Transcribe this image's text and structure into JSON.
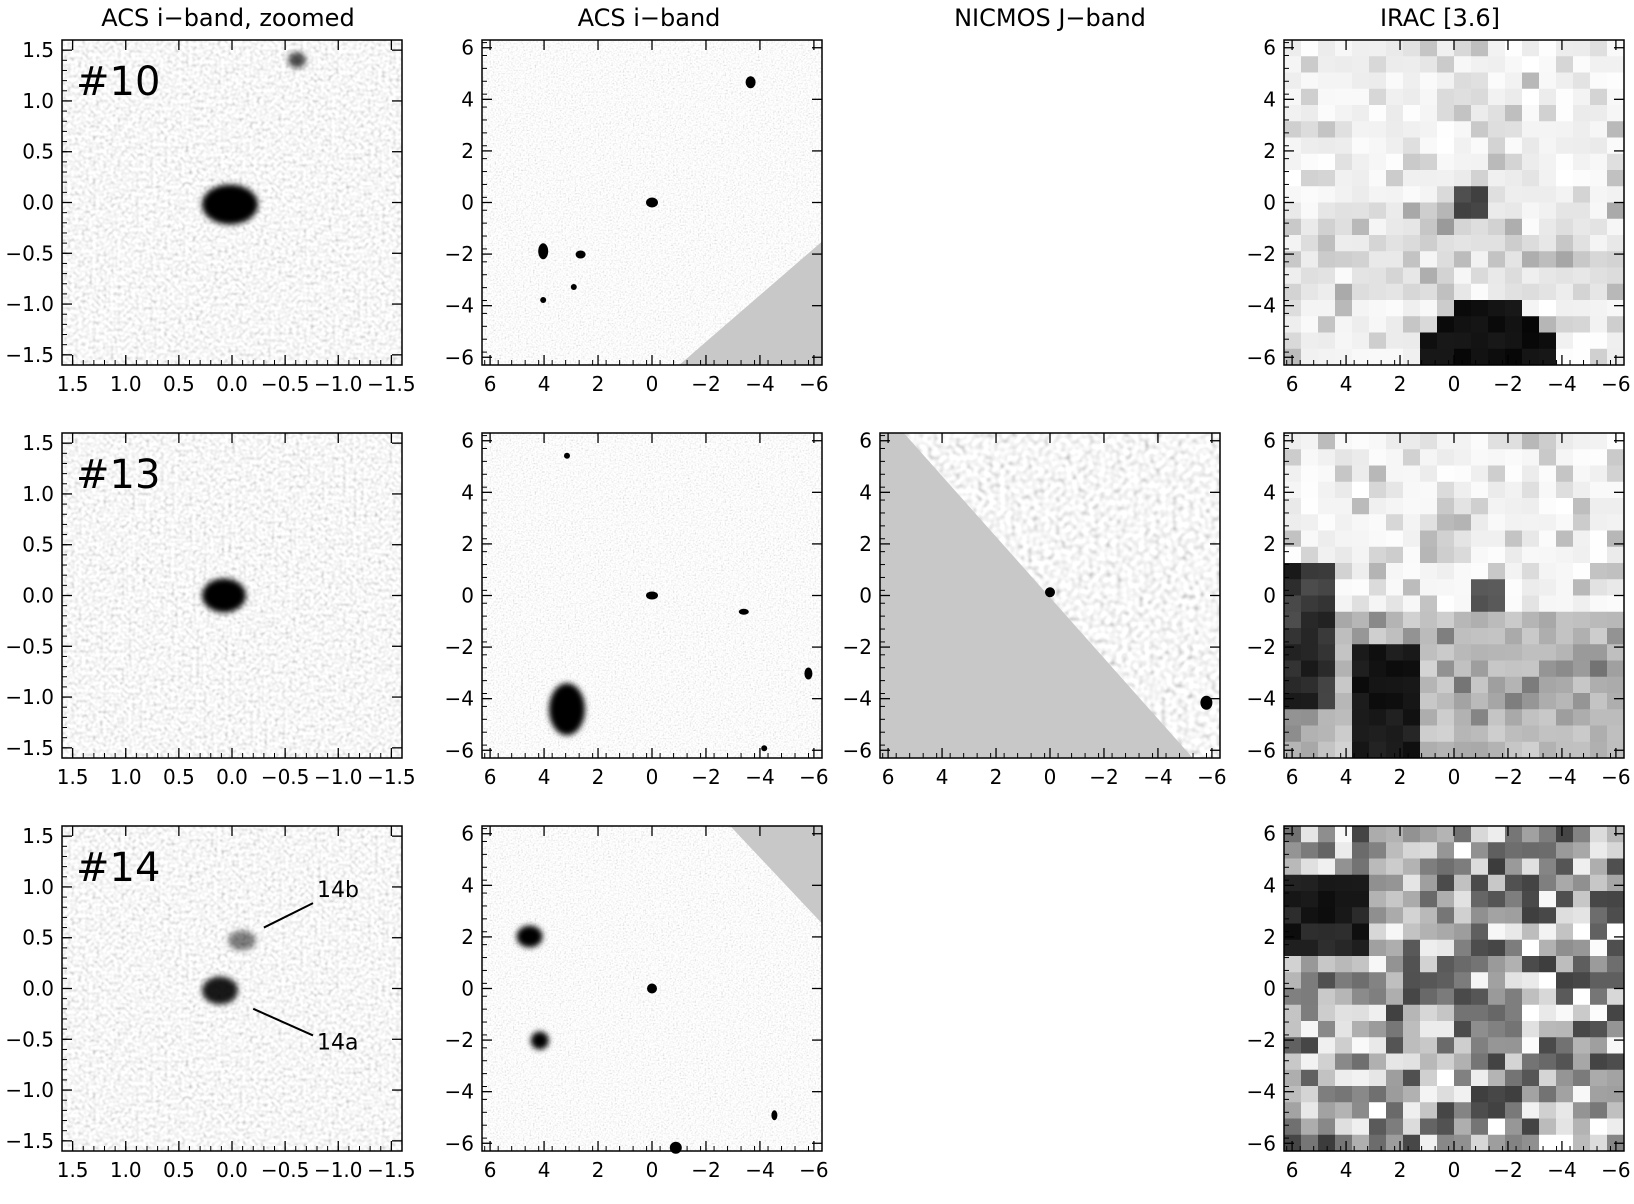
{
  "column_titles": [
    "ACS i−band, zoomed",
    "ACS i−band",
    "NICMOS J−band",
    "IRAC [3.6]"
  ],
  "axis_ticks": {
    "zoomed": [
      "1.5",
      "1.0",
      "0.5",
      "0.0",
      "−0.5",
      "−1.0",
      "−1.5"
    ],
    "wide": [
      "6",
      "4",
      "2",
      "0",
      "−2",
      "−4",
      "−6"
    ]
  },
  "axis_ranges": {
    "zoomed": [
      1.6,
      -1.6
    ],
    "wide": [
      6.3,
      -6.3
    ]
  },
  "rows": [
    {
      "id_label": "#10",
      "panels": [
        "zoomed",
        "wide",
        null,
        "irac"
      ],
      "annotations": []
    },
    {
      "id_label": "#13",
      "panels": [
        "zoomed",
        "wide",
        "nicmos",
        "irac"
      ],
      "annotations": []
    },
    {
      "id_label": "#14",
      "panels": [
        "zoomed",
        "wide",
        null,
        "irac"
      ],
      "annotations": [
        {
          "text": "14b",
          "x": -0.8,
          "y": 0.9,
          "line_to": [
            -0.3,
            0.6
          ]
        },
        {
          "text": "14a",
          "x": -0.8,
          "y": -0.6,
          "line_to": [
            -0.2,
            -0.2
          ]
        }
      ]
    }
  ],
  "colors": {
    "background": "#ffffff",
    "masked_region": "#c8c8c8",
    "axes": "#000000"
  }
}
